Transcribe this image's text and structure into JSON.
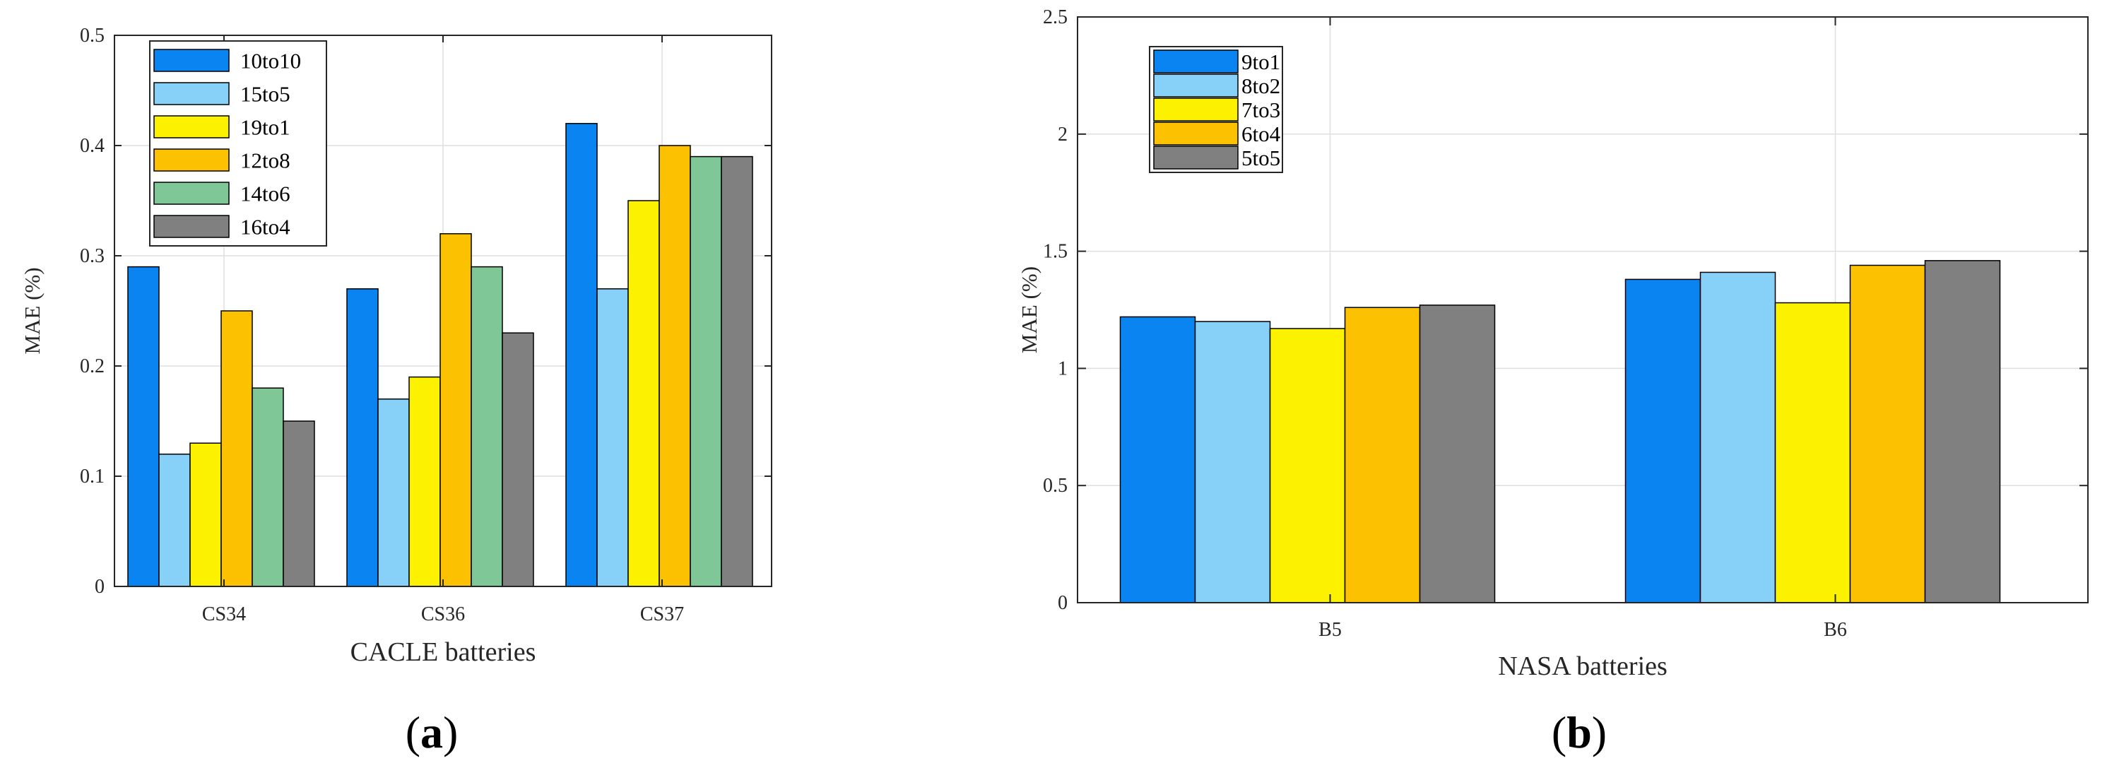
{
  "chart_data": [
    {
      "type": "bar",
      "panel_label": {
        "open": "(",
        "letter": "a",
        "close": ")"
      },
      "title": "",
      "xlabel": "CACLE batteries",
      "ylabel": "MAE (%)",
      "ylim": [
        0,
        0.5
      ],
      "yticks": [
        "0",
        "0.1",
        "0.2",
        "0.3",
        "0.4",
        "0.5"
      ],
      "grid": true,
      "legend_position": "top-left",
      "categories": [
        "CS34",
        "CS36",
        "CS37"
      ],
      "series": [
        {
          "name": "10to10",
          "color": "#0a84f0",
          "values": [
            0.29,
            0.27,
            0.42
          ]
        },
        {
          "name": "15to5",
          "color": "#87d0f8",
          "values": [
            0.12,
            0.17,
            0.27
          ]
        },
        {
          "name": "19to1",
          "color": "#fcf200",
          "values": [
            0.13,
            0.19,
            0.35
          ]
        },
        {
          "name": "12to8",
          "color": "#fcc100",
          "values": [
            0.25,
            0.32,
            0.4
          ]
        },
        {
          "name": "14to6",
          "color": "#7fc796",
          "values": [
            0.18,
            0.29,
            0.39
          ]
        },
        {
          "name": "16to4",
          "color": "#808080",
          "values": [
            0.15,
            0.23,
            0.39
          ]
        }
      ]
    },
    {
      "type": "bar",
      "panel_label": {
        "open": "(",
        "letter": "b",
        "close": ")"
      },
      "title": "",
      "xlabel": "NASA batteries",
      "ylabel": "MAE (%)",
      "ylim": [
        0,
        2.5
      ],
      "yticks": [
        "0",
        "0.5",
        "1",
        "1.5",
        "2",
        "2.5"
      ],
      "grid": true,
      "legend_position": "top-left",
      "categories": [
        "B5",
        "B6"
      ],
      "series": [
        {
          "name": "9to1",
          "color": "#0a84f0",
          "values": [
            1.22,
            1.38
          ]
        },
        {
          "name": "8to2",
          "color": "#87d0f8",
          "values": [
            1.2,
            1.41
          ]
        },
        {
          "name": "7to3",
          "color": "#fcf200",
          "values": [
            1.17,
            1.28
          ]
        },
        {
          "name": "6to4",
          "color": "#fcc100",
          "values": [
            1.26,
            1.44
          ]
        },
        {
          "name": "5to5",
          "color": "#808080",
          "values": [
            1.27,
            1.46
          ]
        }
      ]
    }
  ]
}
